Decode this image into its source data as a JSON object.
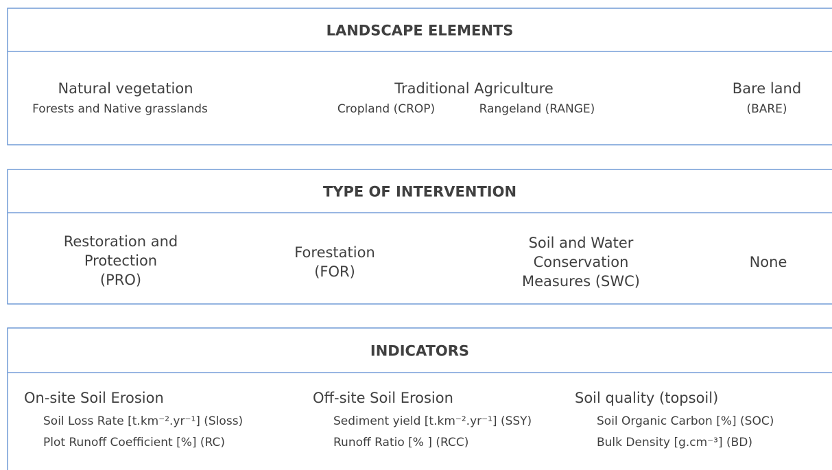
{
  "sections": [
    {
      "title": "LANDSCAPE ELEMENTS",
      "groups": [
        {
          "label": [
            "Natural vegetation"
          ],
          "items": [
            "Forests and Native grasslands"
          ]
        },
        {
          "label": [
            "Traditional Agriculture"
          ],
          "items": [
            "Cropland (CROP)",
            "Rangeland (RANGE)"
          ]
        },
        {
          "label": [
            "Bare land"
          ],
          "items": [
            "(BARE)"
          ]
        }
      ]
    },
    {
      "title": "TYPE OF INTERVENTION",
      "groups": [
        {
          "label": [
            "Restoration and",
            "Protection",
            "(PRO)"
          ]
        },
        {
          "label": [
            "Forestation",
            "(FOR)"
          ]
        },
        {
          "label": [
            "Soil and Water",
            "Conservation",
            "Measures (SWC)"
          ]
        },
        {
          "label": [
            "None"
          ]
        }
      ]
    },
    {
      "title": "INDICATORS",
      "groups": [
        {
          "label": [
            "On-site Soil Erosion"
          ],
          "items": [
            "Soil Loss Rate [t.km⁻².yr⁻¹] (Sloss)",
            "Plot Runoff Coefficient [%] (RC)"
          ]
        },
        {
          "label": [
            "Off-site Soil Erosion"
          ],
          "items": [
            "Sediment yield [t.km⁻².yr⁻¹] (SSY)",
            "Runoff Ratio [% ] (RCC)"
          ]
        },
        {
          "label": [
            "Soil quality (topsoil)"
          ],
          "items": [
            "Soil Organic Carbon [%] (SOC)",
            "Bulk Density [g.cm⁻³] (BD)"
          ]
        }
      ]
    }
  ]
}
